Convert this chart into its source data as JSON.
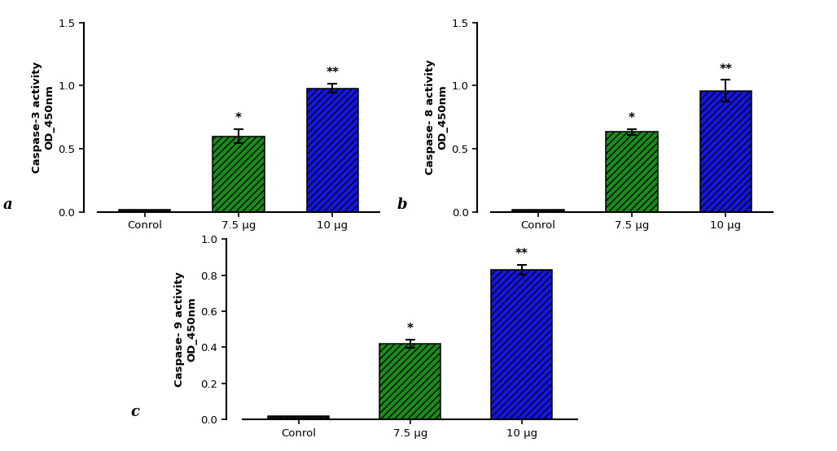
{
  "panels": [
    {
      "label": "a",
      "ylabel_line1": "Caspase-3 activity",
      "ylabel_line2": "OD_450nm",
      "categories": [
        "Conrol",
        "7.5 μg",
        "10 μg"
      ],
      "values": [
        0.02,
        0.6,
        0.98
      ],
      "errors": [
        0.008,
        0.055,
        0.038
      ],
      "colors": [
        "#111111",
        "#1a8c1a",
        "#1515e8"
      ],
      "ylim": [
        0,
        1.5
      ],
      "yticks": [
        0.0,
        0.5,
        1.0,
        1.5
      ],
      "significance": [
        "",
        "*",
        "**"
      ]
    },
    {
      "label": "b",
      "ylabel_line1": "Caspase- 8 activity",
      "ylabel_line2": "OD_450nm",
      "categories": [
        "Conrol",
        "7.5 μg",
        "10 μg"
      ],
      "values": [
        0.02,
        0.635,
        0.96
      ],
      "errors": [
        0.008,
        0.022,
        0.085
      ],
      "colors": [
        "#111111",
        "#1a8c1a",
        "#1515e8"
      ],
      "ylim": [
        0,
        1.5
      ],
      "yticks": [
        0.0,
        0.5,
        1.0,
        1.5
      ],
      "significance": [
        "",
        "*",
        "**"
      ]
    },
    {
      "label": "c",
      "ylabel_line1": "Caspase- 9 activity",
      "ylabel_line2": "OD_450nm",
      "categories": [
        "Conrol",
        "7.5 μg",
        "10 μg"
      ],
      "values": [
        0.02,
        0.42,
        0.83
      ],
      "errors": [
        0.008,
        0.022,
        0.028
      ],
      "colors": [
        "#111111",
        "#1a8c1a",
        "#1515e8"
      ],
      "ylim": [
        0,
        1.0
      ],
      "yticks": [
        0.0,
        0.2,
        0.4,
        0.6,
        0.8,
        1.0
      ],
      "significance": [
        "",
        "*",
        "**"
      ]
    }
  ],
  "bg_color": "#ffffff",
  "bar_width": 0.55,
  "hatch_pattern": "////",
  "tick_font_size": 9.5,
  "label_font_size": 9.5,
  "sig_font_size": 11,
  "panel_label_fontsize": 13
}
